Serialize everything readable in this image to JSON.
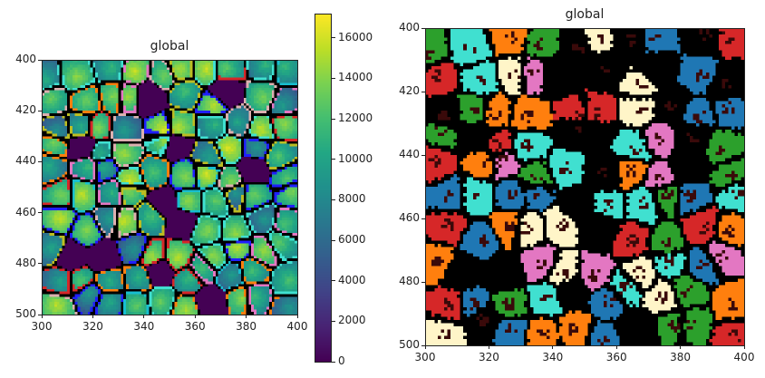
{
  "chart_data": [
    {
      "type": "heatmap",
      "title": "global",
      "colormap": "viridis",
      "xlim": [
        300,
        400
      ],
      "ylim": [
        500,
        400
      ],
      "xticks": [
        "300",
        "320",
        "340",
        "360",
        "380",
        "400"
      ],
      "yticks": [
        "400",
        "420",
        "440",
        "460",
        "480",
        "500"
      ],
      "colorbar": {
        "range": [
          0,
          17200
        ],
        "ticks": [
          "0",
          "2000",
          "4000",
          "6000",
          "8000",
          "10000",
          "12000",
          "14000",
          "16000"
        ]
      },
      "content": "segmented cells with colored outlines"
    },
    {
      "type": "heatmap",
      "title": "global",
      "colormap": "categorical RGB",
      "xlim": [
        300,
        400
      ],
      "ylim": [
        500,
        400
      ],
      "xticks": [
        "300",
        "320",
        "340",
        "360",
        "380",
        "400"
      ],
      "yticks": [
        "400",
        "420",
        "440",
        "460",
        "480",
        "500"
      ],
      "content": "segmented cells colored by label",
      "palette": [
        "#ff7f0e",
        "#1f77b4",
        "#fff5c8",
        "#d62728",
        "#2ca02c",
        "#40e0d0",
        "#e377c2",
        "#000000"
      ]
    }
  ]
}
